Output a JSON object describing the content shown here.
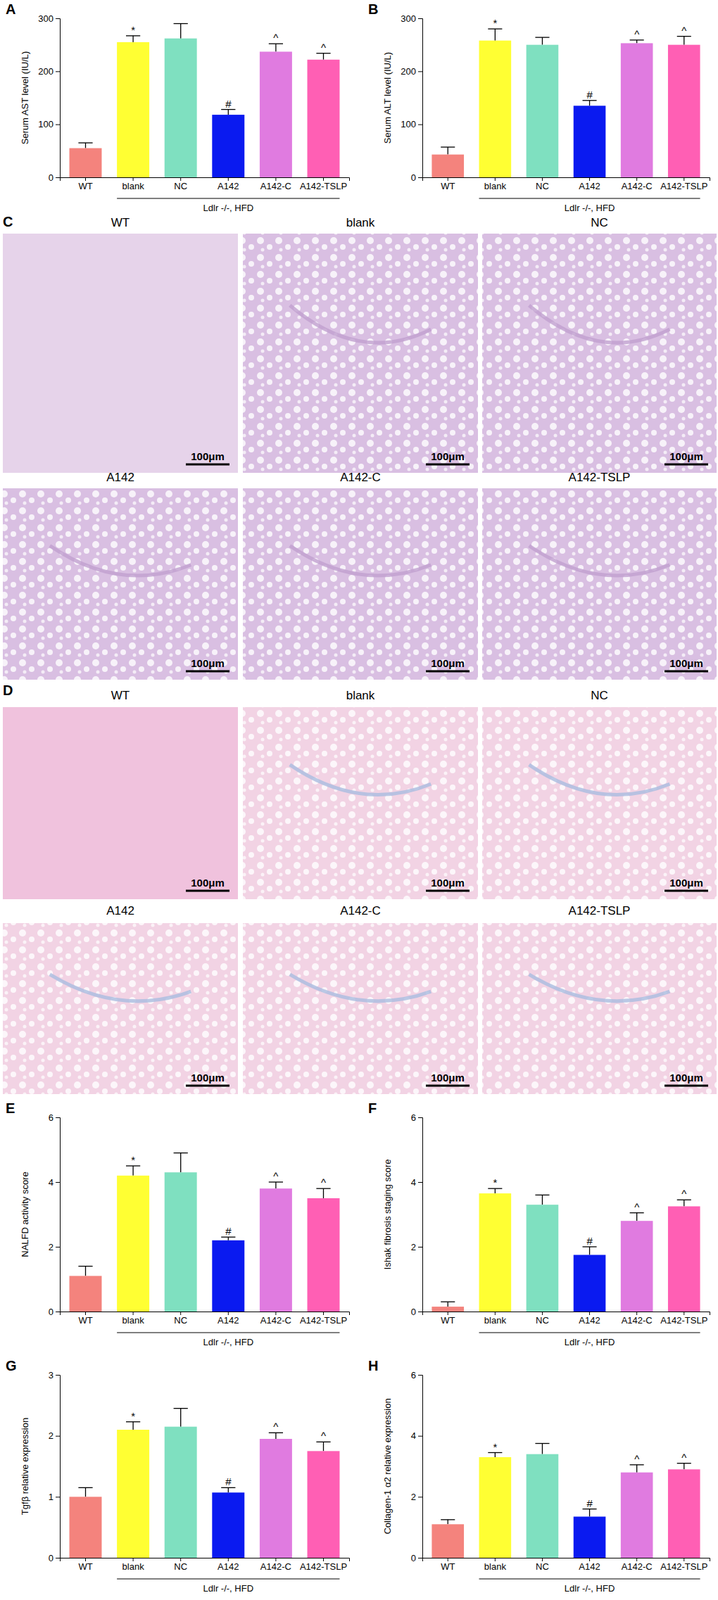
{
  "chart_data": [
    {
      "type": "bar",
      "panel": "A",
      "ylabel": "Serum AST level (IU/L)",
      "group_label": "Ldlr -/-, HFD",
      "categories": [
        "WT",
        "blank",
        "NC",
        "A142",
        "A142-C",
        "A142-TSLP"
      ],
      "values": [
        55,
        255,
        262,
        118,
        237,
        222
      ],
      "errors": [
        10,
        12,
        28,
        10,
        15,
        12
      ],
      "annotations": [
        null,
        "*",
        null,
        "#",
        "^",
        "^"
      ],
      "colors": [
        "#f4837d",
        "#ffff33",
        "#7fe0c0",
        "#0a1af0",
        "#e07be0",
        "#ff5fb4"
      ],
      "ylim": [
        0,
        300
      ],
      "yticks": [
        0,
        100,
        200,
        300
      ]
    },
    {
      "type": "bar",
      "panel": "B",
      "ylabel": "Serum ALT level (IU/L)",
      "group_label": "Ldlr -/-, HFD",
      "categories": [
        "WT",
        "blank",
        "NC",
        "A142",
        "A142-C",
        "A142-TSLP"
      ],
      "values": [
        43,
        258,
        250,
        135,
        253,
        250
      ],
      "errors": [
        14,
        22,
        14,
        10,
        6,
        16
      ],
      "annotations": [
        null,
        "*",
        null,
        "#",
        "^",
        "^"
      ],
      "colors": [
        "#f4837d",
        "#ffff33",
        "#7fe0c0",
        "#0a1af0",
        "#e07be0",
        "#ff5fb4"
      ],
      "ylim": [
        0,
        300
      ],
      "yticks": [
        0,
        100,
        200,
        300
      ]
    },
    {
      "type": "bar",
      "panel": "E",
      "ylabel": "NALFD activity score",
      "group_label": "Ldlr -/-, HFD",
      "categories": [
        "WT",
        "blank",
        "NC",
        "A142",
        "A142-C",
        "A142-TSLP"
      ],
      "values": [
        1.1,
        4.2,
        4.3,
        2.2,
        3.8,
        3.5
      ],
      "errors": [
        0.3,
        0.3,
        0.6,
        0.1,
        0.2,
        0.3
      ],
      "annotations": [
        null,
        "*",
        null,
        "#",
        "^",
        "^"
      ],
      "colors": [
        "#f4837d",
        "#ffff33",
        "#7fe0c0",
        "#0a1af0",
        "#e07be0",
        "#ff5fb4"
      ],
      "ylim": [
        0,
        6
      ],
      "yticks": [
        0,
        2,
        4,
        6
      ]
    },
    {
      "type": "bar",
      "panel": "F",
      "ylabel": "Ishak fibrosis staging score",
      "group_label": "Ldlr -/-, HFD",
      "categories": [
        "WT",
        "blank",
        "NC",
        "A142",
        "A142-C",
        "A142-TSLP"
      ],
      "values": [
        0.15,
        3.65,
        3.3,
        1.75,
        2.8,
        3.25
      ],
      "errors": [
        0.15,
        0.15,
        0.3,
        0.25,
        0.25,
        0.2
      ],
      "annotations": [
        null,
        "*",
        null,
        "#",
        "^",
        "^"
      ],
      "colors": [
        "#f4837d",
        "#ffff33",
        "#7fe0c0",
        "#0a1af0",
        "#e07be0",
        "#ff5fb4"
      ],
      "ylim": [
        0,
        6
      ],
      "yticks": [
        0,
        2,
        4,
        6
      ]
    },
    {
      "type": "bar",
      "panel": "G",
      "ylabel": "Tgfβ relative expression",
      "group_label": "Ldlr -/-, HFD",
      "categories": [
        "WT",
        "blank",
        "NC",
        "A142",
        "A142-C",
        "A142-TSLP"
      ],
      "values": [
        1.0,
        2.1,
        2.15,
        1.07,
        1.95,
        1.75
      ],
      "errors": [
        0.15,
        0.13,
        0.3,
        0.08,
        0.1,
        0.15
      ],
      "annotations": [
        null,
        "*",
        null,
        "#",
        "^",
        "^"
      ],
      "colors": [
        "#f4837d",
        "#ffff33",
        "#7fe0c0",
        "#0a1af0",
        "#e07be0",
        "#ff5fb4"
      ],
      "ylim": [
        0,
        3
      ],
      "yticks": [
        0,
        1,
        2,
        3
      ]
    },
    {
      "type": "bar",
      "panel": "H",
      "ylabel": "Collagen-1 α2 relative expression",
      "group_label": "Ldlr -/-, HFD",
      "categories": [
        "WT",
        "blank",
        "NC",
        "A142",
        "A142-C",
        "A142-TSLP"
      ],
      "values": [
        1.1,
        3.3,
        3.4,
        1.35,
        2.8,
        2.9
      ],
      "errors": [
        0.15,
        0.15,
        0.35,
        0.25,
        0.25,
        0.2
      ],
      "annotations": [
        null,
        "*",
        null,
        "#",
        "^",
        "^"
      ],
      "colors": [
        "#f4837d",
        "#ffff33",
        "#7fe0c0",
        "#0a1af0",
        "#e07be0",
        "#ff5fb4"
      ],
      "ylim": [
        0,
        6
      ],
      "yticks": [
        0,
        2,
        4,
        6
      ]
    }
  ],
  "image_panels": [
    {
      "label": "C",
      "images": [
        {
          "title": "WT",
          "scale_bar": "100μm"
        },
        {
          "title": "blank",
          "scale_bar": "100μm"
        },
        {
          "title": "NC",
          "scale_bar": "100μm"
        },
        {
          "title": "A142",
          "scale_bar": "100μm"
        },
        {
          "title": "A142-C",
          "scale_bar": "100μm"
        },
        {
          "title": "A142-TSLP",
          "scale_bar": "100μm"
        }
      ]
    },
    {
      "label": "D",
      "images": [
        {
          "title": "WT",
          "scale_bar": "100μm"
        },
        {
          "title": "blank",
          "scale_bar": "100μm"
        },
        {
          "title": "NC",
          "scale_bar": "100μm"
        },
        {
          "title": "A142",
          "scale_bar": "100μm"
        },
        {
          "title": "A142-C",
          "scale_bar": "100μm"
        },
        {
          "title": "A142-TSLP",
          "scale_bar": "100μm"
        }
      ]
    }
  ]
}
